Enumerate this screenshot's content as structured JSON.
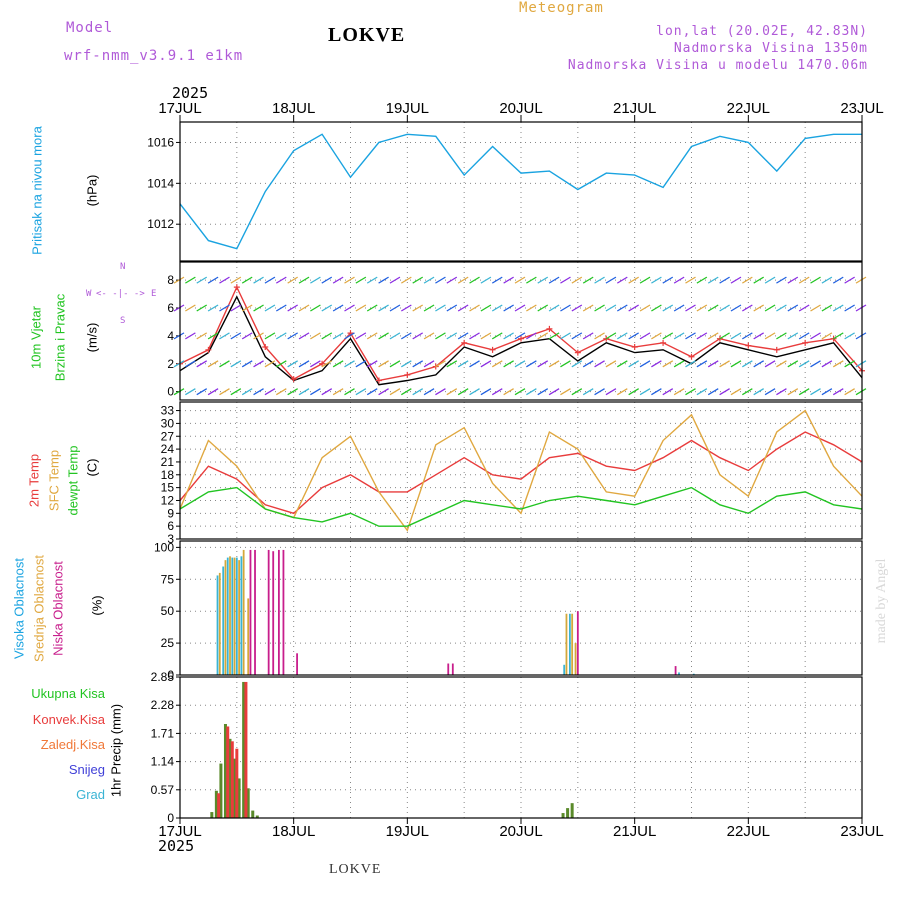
{
  "header": {
    "model_label": "Model",
    "model_name": "wrf-nmm_v3.9.1 e1km",
    "station": "LOKVE",
    "chart_title": "Meteogram",
    "coords": "lon,lat (20.02E, 42.83N)",
    "elevation": "Nadmorska Visina 1350m",
    "model_elevation": "Nadmorska Visina u modelu 1470.06m"
  },
  "footer": {
    "station": "LOKVE",
    "credit": "made by Angel"
  },
  "time_axis": {
    "year": "2025",
    "ticks": [
      "17JUL",
      "18JUL",
      "19JUL",
      "20JUL",
      "21JUL",
      "22JUL",
      "23JUL"
    ]
  },
  "panel_labels": {
    "pressure": {
      "name": "Pritisak na nivou mora",
      "unit": "(hPa)"
    },
    "wind": {
      "line1": "10m Vjetar",
      "line2": "Brzina i Pravac",
      "unit": "(m/s)",
      "compass_s": "S",
      "compass_n": "N",
      "compass_w": "W",
      "compass_e": "E",
      "compass_dash": "<- -|- ->"
    },
    "temp": {
      "t2m": "2m Temp",
      "sfc": "SFC Temp",
      "dew": "dewpt Temp",
      "unit": "(C)"
    },
    "cloud": {
      "high": "Visoka Oblacnost",
      "mid": "Srednja Oblacnost",
      "low": "Niska Oblacnost",
      "unit": "(%)"
    },
    "precip": {
      "total": "Ukupna Kisa",
      "conv": "Konvek.Kisa",
      "frz": "Zaledj.Kisa",
      "snow": "Snijeg",
      "grad": "Grad",
      "unit": "1hr Precip (mm)"
    }
  },
  "colors": {
    "pressure": "#1aa3e0",
    "t2m": "#e83c3c",
    "sfc": "#e0a840",
    "dew": "#22c422",
    "wind_speed": "#000000",
    "wind_gust": "#e83c3c",
    "cloud_high": "#3ab4d4",
    "cloud_mid": "#d4a83a",
    "cloud_low": "#c81e8c",
    "precip_total": "#5a8a2a",
    "precip_conv": "#e83c3c",
    "label_purple": "#b05ad8",
    "label_orange": "#e0a840"
  },
  "chart_data": [
    {
      "type": "line",
      "name": "pressure",
      "ylabel": "Pritisak na nivou mora (hPa)",
      "ylim": [
        1010.2,
        1017.0
      ],
      "yticks": [
        "1012",
        "1014",
        "1016"
      ],
      "x_days": [
        0,
        0.25,
        0.5,
        0.75,
        1.0,
        1.25,
        1.5,
        1.75,
        2.0,
        2.25,
        2.5,
        2.75,
        3.0,
        3.25,
        3.5,
        3.75,
        4.0,
        4.25,
        4.5,
        4.75,
        5.0,
        5.25,
        5.5,
        5.75,
        6.0
      ],
      "series": [
        {
          "values": [
            1013.0,
            1011.2,
            1010.8,
            1013.6,
            1015.6,
            1016.4,
            1014.3,
            1016.0,
            1016.4,
            1016.3,
            1014.4,
            1015.8,
            1014.5,
            1014.6,
            1013.7,
            1014.5,
            1014.4,
            1013.8,
            1015.8,
            1016.3,
            1016.0,
            1014.6,
            1016.2,
            1016.4,
            1016.4
          ]
        }
      ],
      "grid": true
    },
    {
      "type": "line",
      "name": "wind",
      "ylabel": "10m Vjetar Brzina i Pravac (m/s)",
      "ylim": [
        -0.6,
        9.3
      ],
      "yticks": [
        "0",
        "2",
        "4",
        "6",
        "8"
      ],
      "x_days": [
        0,
        0.25,
        0.5,
        0.75,
        1.0,
        1.25,
        1.5,
        1.75,
        2.0,
        2.25,
        2.5,
        2.75,
        3.0,
        3.25,
        3.5,
        3.75,
        4.0,
        4.25,
        4.5,
        4.75,
        5.0,
        5.25,
        5.5,
        5.75,
        6.0
      ],
      "series": [
        {
          "name": "speed",
          "values": [
            1.5,
            2.8,
            6.8,
            2.5,
            0.8,
            1.5,
            3.8,
            0.5,
            0.8,
            1.2,
            3.2,
            2.5,
            3.5,
            3.8,
            2.2,
            3.5,
            2.8,
            3.0,
            2.0,
            3.5,
            3.0,
            2.5,
            3.0,
            3.5,
            1.0
          ]
        },
        {
          "name": "gust",
          "values": [
            2.0,
            3.0,
            7.5,
            3.2,
            0.9,
            2.0,
            4.2,
            0.8,
            1.2,
            1.8,
            3.5,
            3.0,
            3.8,
            4.5,
            2.8,
            3.8,
            3.2,
            3.5,
            2.5,
            3.8,
            3.3,
            3.0,
            3.5,
            3.8,
            1.5
          ]
        }
      ],
      "grid": true
    },
    {
      "type": "line",
      "name": "temperature",
      "ylabel": "(C)",
      "ylim": [
        3,
        35
      ],
      "yticks": [
        "3",
        "6",
        "9",
        "12",
        "15",
        "18",
        "21",
        "24",
        "27",
        "30",
        "33"
      ],
      "x_days": [
        0,
        0.25,
        0.5,
        0.75,
        1.0,
        1.25,
        1.5,
        1.75,
        2.0,
        2.25,
        2.5,
        2.75,
        3.0,
        3.25,
        3.5,
        3.75,
        4.0,
        4.25,
        4.5,
        4.75,
        5.0,
        5.25,
        5.5,
        5.75,
        6.0
      ],
      "series": [
        {
          "name": "2m Temp",
          "values": [
            12,
            20,
            17,
            11,
            9,
            15,
            18,
            14,
            14,
            18,
            22,
            18,
            17,
            22,
            23,
            20,
            19,
            22,
            26,
            22,
            19,
            24,
            28,
            25,
            21
          ]
        },
        {
          "name": "SFC Temp",
          "values": [
            10,
            26,
            20,
            10,
            8,
            22,
            27,
            14,
            5,
            25,
            29,
            16,
            9,
            28,
            24,
            14,
            13,
            26,
            32,
            18,
            13,
            28,
            33,
            20,
            13
          ]
        },
        {
          "name": "dewpt Temp",
          "values": [
            10,
            14,
            15,
            10,
            8,
            7,
            9,
            6,
            6,
            9,
            12,
            11,
            10,
            12,
            13,
            12,
            11,
            13,
            15,
            11,
            9,
            13,
            14,
            11,
            10
          ]
        }
      ],
      "grid": true
    },
    {
      "type": "bar",
      "name": "cloud",
      "ylabel": "(%)",
      "ylim": [
        0,
        105
      ],
      "yticks": [
        "0",
        "25",
        "50",
        "75",
        "100"
      ],
      "series": [
        {
          "name": "Visoka Oblacnost",
          "x_days": [
            0.33,
            0.38,
            0.42,
            0.46,
            0.5,
            0.54,
            3.38,
            3.43,
            4.39,
            4.52
          ],
          "values": [
            78,
            85,
            92,
            92,
            92,
            93,
            8,
            48,
            2,
            1
          ]
        },
        {
          "name": "Srednja Oblacnost",
          "x_days": [
            0.35,
            0.4,
            0.44,
            0.48,
            0.52,
            0.56,
            0.6,
            3.4,
            3.45,
            3.48
          ],
          "values": [
            80,
            90,
            93,
            92,
            90,
            98,
            60,
            48,
            48,
            25
          ]
        },
        {
          "name": "Niska Oblacnost",
          "x_days": [
            0.62,
            0.66,
            0.78,
            0.82,
            0.87,
            0.91,
            1.03,
            2.36,
            2.4,
            3.5,
            4.36
          ],
          "values": [
            98,
            98,
            98,
            97,
            98,
            98,
            17,
            9,
            9,
            50,
            7
          ]
        }
      ],
      "grid": true
    },
    {
      "type": "bar",
      "name": "precipitation",
      "ylabel": "1hr Precip (mm)",
      "ylim": [
        0,
        2.85
      ],
      "yticks": [
        "0",
        "0.57",
        "1.14",
        "1.71",
        "2.28",
        "2.85"
      ],
      "series": [
        {
          "name": "Ukupna Kisa",
          "x_days": [
            0.28,
            0.32,
            0.36,
            0.4,
            0.44,
            0.48,
            0.52,
            0.56,
            0.6,
            0.64,
            0.68,
            3.37,
            3.41,
            3.45
          ],
          "values": [
            0.12,
            0.55,
            1.1,
            1.9,
            1.6,
            1.2,
            0.8,
            2.75,
            0.6,
            0.15,
            0.05,
            0.1,
            0.2,
            0.3
          ]
        },
        {
          "name": "Konvek.Kisa",
          "x_days": [
            0.34,
            0.42,
            0.46,
            0.5,
            0.58
          ],
          "values": [
            0.5,
            1.85,
            1.55,
            1.4,
            2.75
          ]
        }
      ],
      "grid": true
    }
  ]
}
